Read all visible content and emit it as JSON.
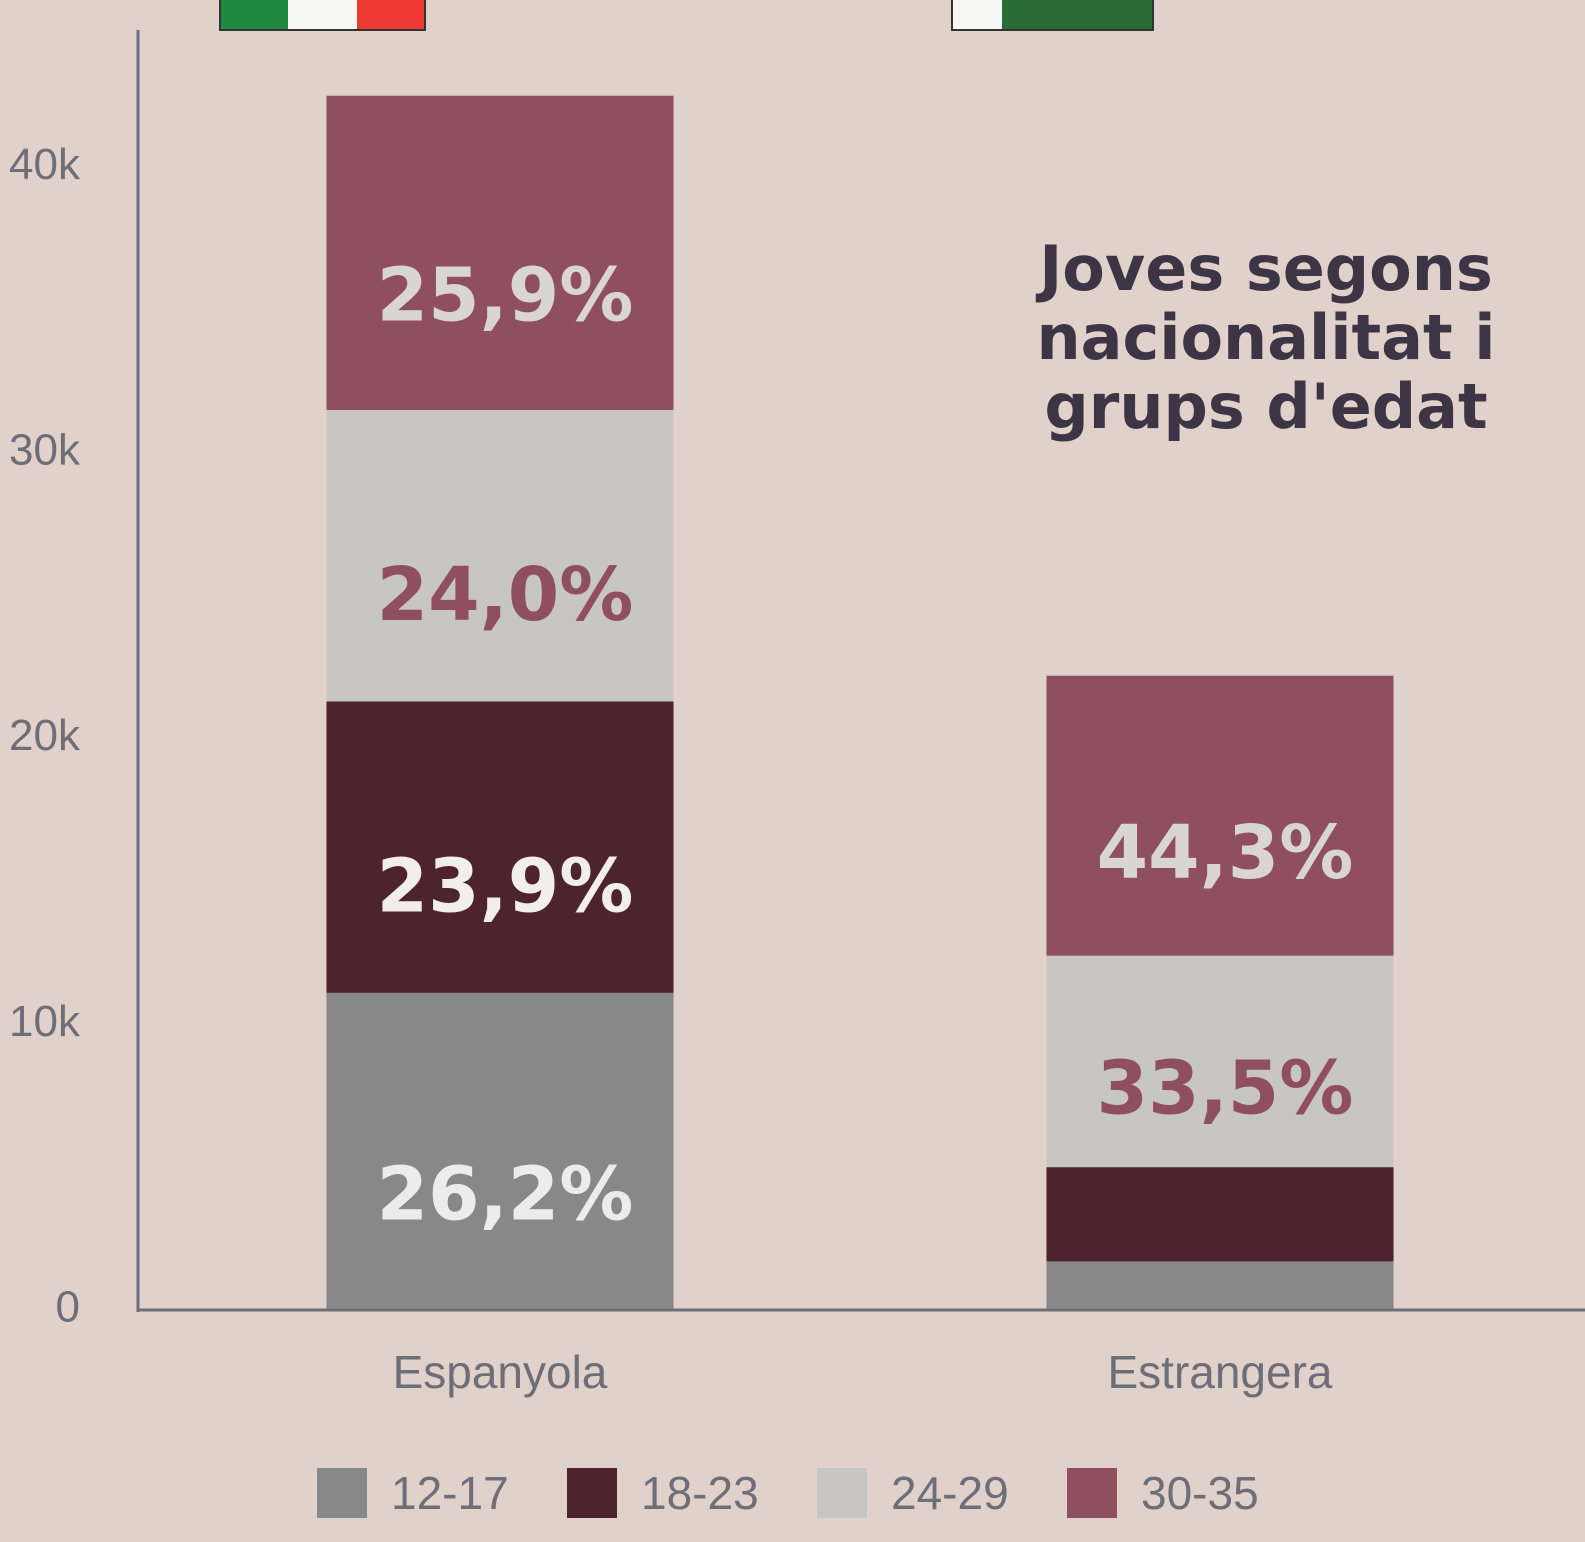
{
  "chart_data": {
    "type": "stacked_bar",
    "title": "Joves segons nacionalitat i grups d'edat",
    "categories": [
      "Espanyola",
      "Estrangera"
    ],
    "series": [
      {
        "name": "12-17",
        "color": "#888888",
        "values": [
          11100,
          1700
        ],
        "percent_labels": [
          "26,2%",
          null
        ],
        "label_color": "#ececec"
      },
      {
        "name": "18-23",
        "color": "#4e2330",
        "values": [
          10200,
          3300
        ],
        "percent_labels": [
          "23,9%",
          null
        ],
        "label_color": "#f2eeee"
      },
      {
        "name": "24-29",
        "color": "#c8c6c5",
        "values": [
          10200,
          7400
        ],
        "percent_labels": [
          "24,0%",
          "33,5%"
        ],
        "label_color": "#904f60"
      },
      {
        "name": "30-35",
        "color": "#904f60",
        "values": [
          11000,
          9800
        ],
        "percent_labels": [
          "25,9%",
          "44,3%"
        ],
        "label_color": "#d9d5d5"
      }
    ],
    "ylim": [
      0,
      44800
    ],
    "yticks": [
      0,
      {
        "value": 10000,
        "label": "10k"
      },
      {
        "value": 20000,
        "label": "20k"
      },
      {
        "value": 30000,
        "label": "30k"
      },
      {
        "value": 40000,
        "label": "40k"
      }
    ],
    "legend": "bottom"
  }
}
